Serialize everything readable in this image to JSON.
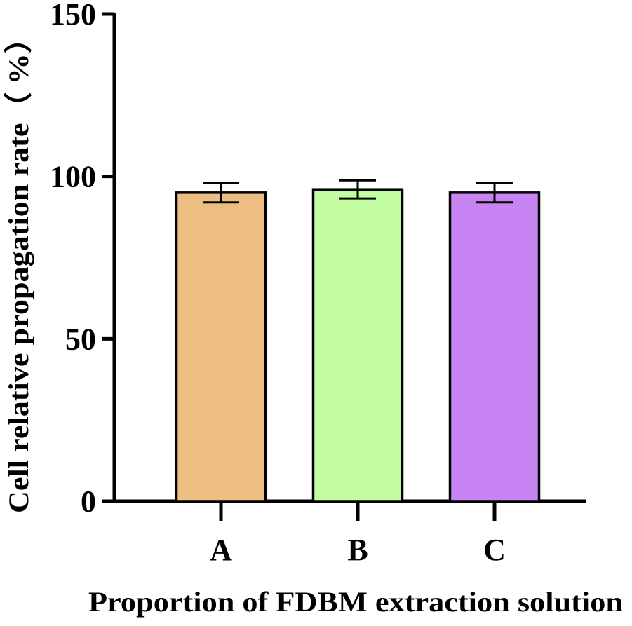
{
  "chart_data": {
    "type": "bar",
    "categories": [
      "A",
      "B",
      "C"
    ],
    "values": [
      95,
      96,
      95
    ],
    "errors": [
      3,
      2.8,
      3
    ],
    "colors": [
      "#EDBE82",
      "#C3FDA1",
      "#C884F2"
    ],
    "title": "",
    "xlabel": "Proportion of FDBM extraction solution",
    "ylabel": "Cell relative propagation rate（ %）",
    "ylim": [
      0,
      150
    ],
    "yticks": [
      "0",
      "50",
      "100",
      "150"
    ],
    "grid": false,
    "legend": false
  }
}
